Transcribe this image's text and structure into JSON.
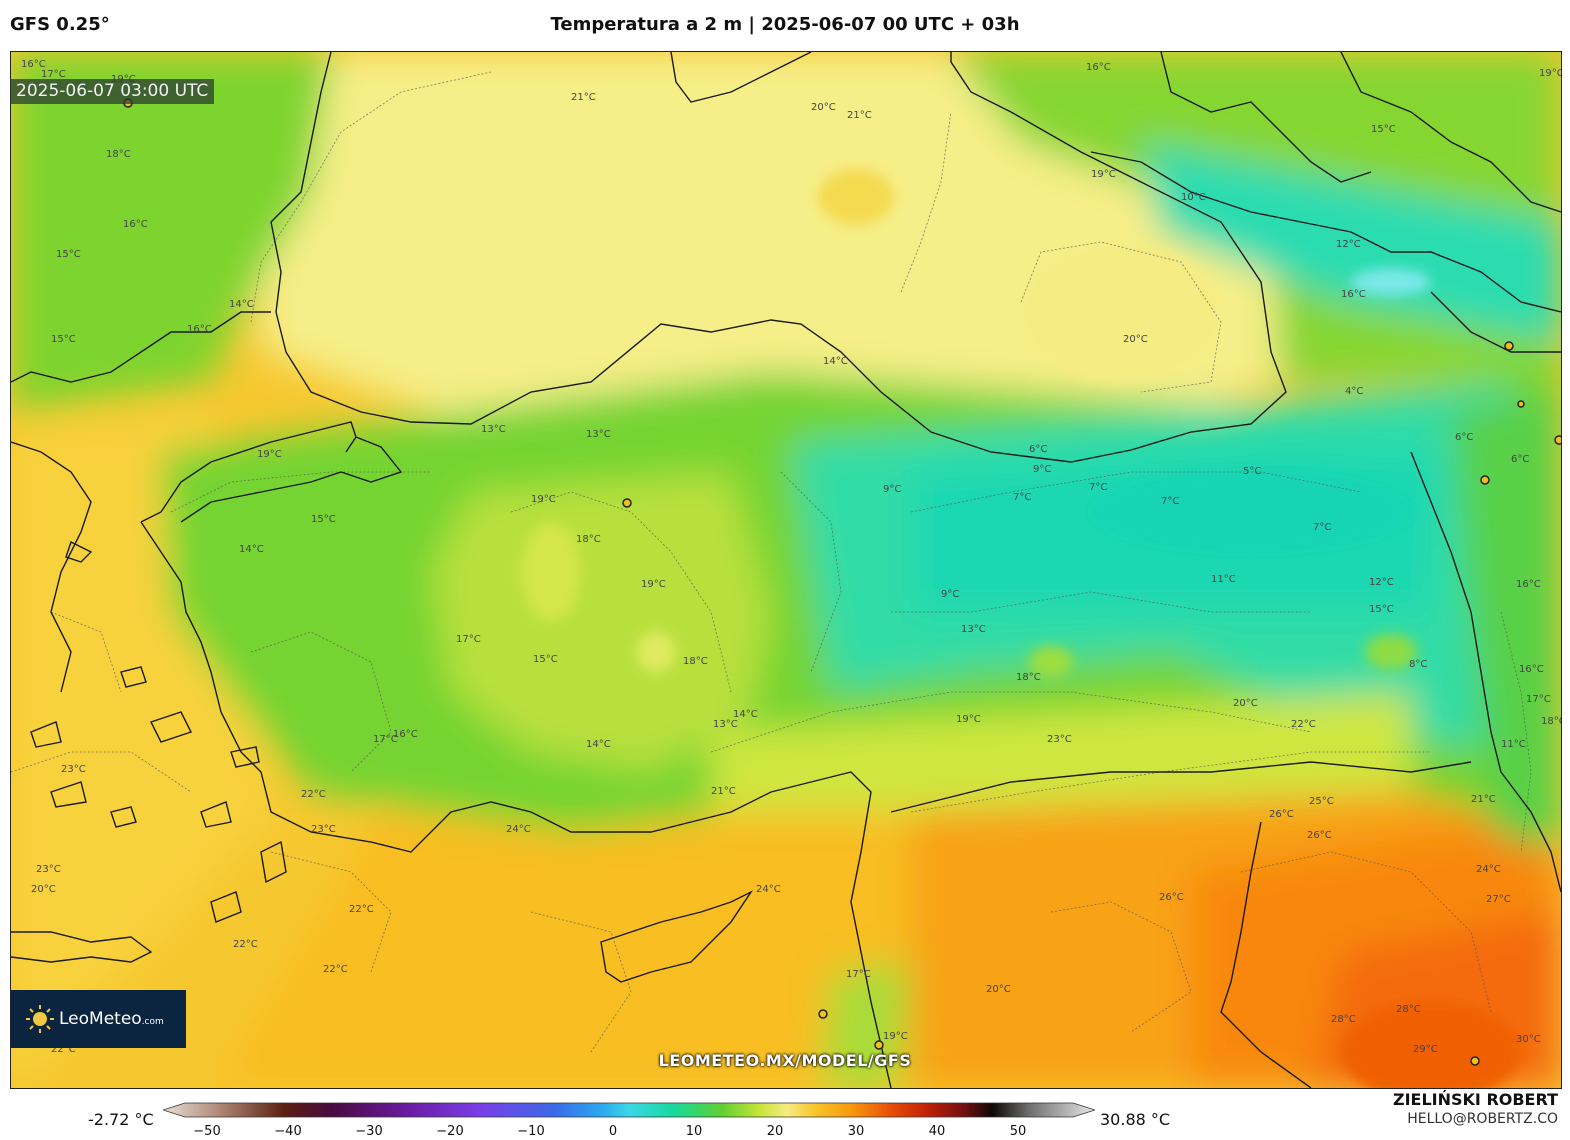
{
  "header": {
    "model": "GFS 0.25°",
    "title": "Temperatura a 2 m | 2025-06-07 00 UTC + 03h"
  },
  "map": {
    "timestamp_badge": "2025-06-07 03:00 UTC",
    "watermark": "LEOMETEO.MX/MODEL/GFS",
    "contour_labels": [
      "16°C",
      "17°C",
      "19°C",
      "21°C",
      "20°C",
      "21°C",
      "18°C",
      "16°C",
      "15°C",
      "14°C",
      "15°C",
      "16°C",
      "13°C",
      "13°C",
      "19°C",
      "15°C",
      "14°C",
      "19°C",
      "18°C",
      "19°C",
      "17°C",
      "18°C",
      "17°C",
      "16°C",
      "15°C",
      "14°C",
      "13°C",
      "14°C",
      "21°C",
      "22°C",
      "23°C",
      "24°C",
      "23°C",
      "22°C",
      "22°C",
      "22°C",
      "22°C",
      "23°C",
      "20°C",
      "24°C",
      "17°C",
      "19°C",
      "20°C",
      "19°C",
      "16°C",
      "15°C",
      "10°C",
      "12°C",
      "16°C",
      "20°C",
      "19°C",
      "14°C",
      "9°C",
      "7°C",
      "6°C",
      "9°C",
      "7°C",
      "7°C",
      "5°C",
      "4°C",
      "6°C",
      "7°C",
      "6°C",
      "11°C",
      "9°C",
      "13°C",
      "12°C",
      "15°C",
      "16°C",
      "8°C",
      "18°C",
      "20°C",
      "22°C",
      "23°C",
      "26°C",
      "25°C",
      "26°C",
      "26°C",
      "24°C",
      "27°C",
      "28°C",
      "28°C",
      "29°C",
      "30°C",
      "21°C",
      "11°C",
      "16°C",
      "17°C",
      "18°C",
      "19°C"
    ]
  },
  "logo": {
    "name": "LeoMeteo",
    "suffix": ".com"
  },
  "colorbar": {
    "min_label": "-2.72 °C",
    "max_label": "30.88 °C",
    "ticks": [
      "−50",
      "−40",
      "−30",
      "−20",
      "−10",
      "0",
      "10",
      "20",
      "30",
      "40",
      "50"
    ]
  },
  "credits": {
    "author": "ZIELIŃSKI ROBERT",
    "email": "HELLO@ROBERTZ.CO"
  },
  "colors": {
    "cold_teal": "#22d8a8",
    "green": "#66d22a",
    "yellow_green": "#c8e43c",
    "yellow": "#f4ec7c",
    "orange_yellow": "#f8c428",
    "orange": "#f8960c",
    "hot_orange": "#f46a08"
  }
}
